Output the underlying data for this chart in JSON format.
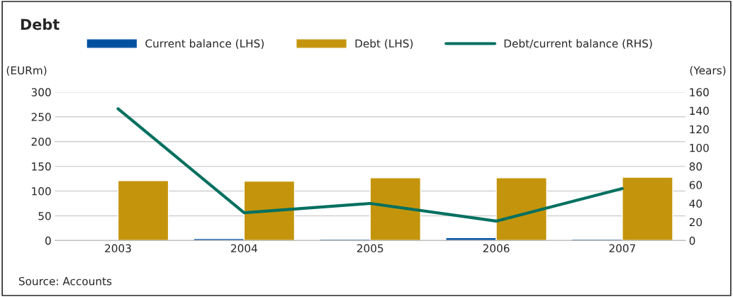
{
  "chart_data": {
    "type": "bar",
    "title": "Debt",
    "ylabel": "(EURm)",
    "y2label": "(Years)",
    "categories": [
      "2003",
      "2004",
      "2005",
      "2006",
      "2007"
    ],
    "series": [
      {
        "name": "Current balance (LHS)",
        "color": "#0050a0",
        "values": [
          null,
          4,
          3,
          6,
          3
        ]
      },
      {
        "name": "Debt (LHS)",
        "color": "#c4950c",
        "values": [
          121,
          120,
          127,
          127,
          128
        ]
      },
      {
        "name": "Debt/current balance (RHS)",
        "color": "#007060",
        "type": "line",
        "axis": "y2",
        "values": [
          142,
          30,
          40,
          21,
          56
        ]
      }
    ],
    "ylim": [
      0,
      300
    ],
    "yticks": [
      0,
      50,
      100,
      150,
      200,
      250,
      300
    ],
    "y2lim": [
      0,
      160
    ],
    "y2ticks": [
      0,
      20,
      40,
      60,
      80,
      100,
      120,
      140,
      160
    ],
    "grid": "y",
    "legend": "top",
    "annotations": [
      "Source: Accounts"
    ]
  }
}
